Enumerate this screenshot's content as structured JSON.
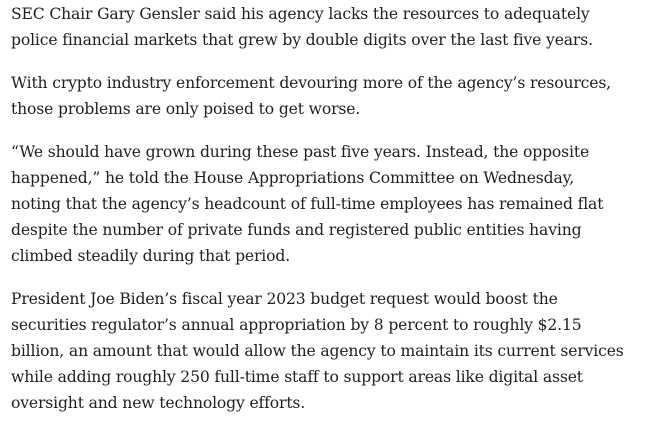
{
  "article": {
    "paragraphs": [
      {
        "lines": [
          "SEC Chair Gary Gensler said his agency lacks the resources to adequately",
          "police financial markets that grew by double digits over the last five years."
        ]
      },
      {
        "lines": [
          "With crypto industry enforcement devouring more of the agency’s resources,",
          "those problems are only poised to get worse."
        ]
      },
      {
        "lines": [
          "“We should have grown during these past five years. Instead, the opposite",
          "happened,” he told the House Appropriations Committee on Wednesday,",
          "noting that the agency’s headcount of full-time employees has remained flat",
          "despite the number of private funds and registered public entities having",
          "climbed steadily during that period."
        ]
      },
      {
        "lines": [
          "President Joe Biden’s fiscal year 2023 budget request would boost the",
          "securities regulator’s annual appropriation by 8 percent to roughly $2.15",
          "billion, an amount that would allow the agency to maintain its current services",
          "while adding roughly 250 full-time staff to support areas like digital asset",
          "oversight and new technology efforts."
        ]
      }
    ]
  }
}
